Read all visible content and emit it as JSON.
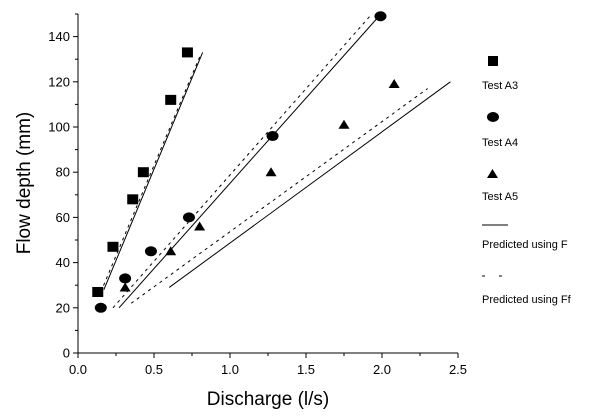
{
  "chart_data": {
    "type": "scatter",
    "xlabel": "Discharge (l/s)",
    "ylabel": "Flow depth (mm)",
    "xlim": [
      0,
      2.5
    ],
    "ylim": [
      0,
      150
    ],
    "x_ticks": [
      0.0,
      0.5,
      1.0,
      1.5,
      2.0,
      2.5
    ],
    "x_tick_labels": [
      "0.0",
      "0.5",
      "1.0",
      "1.5",
      "2.0",
      "2.5"
    ],
    "y_ticks": [
      0,
      20,
      40,
      60,
      80,
      100,
      120,
      140
    ],
    "y_tick_labels": [
      "0",
      "20",
      "40",
      "60",
      "80",
      "100",
      "120",
      "140"
    ],
    "grid": false,
    "legend_position": "right",
    "series": [
      {
        "name": "Test A3",
        "marker": "square",
        "points": [
          {
            "x": 0.13,
            "y": 27
          },
          {
            "x": 0.23,
            "y": 47
          },
          {
            "x": 0.36,
            "y": 68
          },
          {
            "x": 0.43,
            "y": 80
          },
          {
            "x": 0.61,
            "y": 112
          },
          {
            "x": 0.72,
            "y": 133
          }
        ]
      },
      {
        "name": "Test A4",
        "marker": "circle",
        "points": [
          {
            "x": 0.15,
            "y": 20
          },
          {
            "x": 0.31,
            "y": 33
          },
          {
            "x": 0.48,
            "y": 45
          },
          {
            "x": 0.73,
            "y": 60
          },
          {
            "x": 1.28,
            "y": 96
          },
          {
            "x": 1.99,
            "y": 149
          }
        ]
      },
      {
        "name": "Test A5",
        "marker": "triangle",
        "points": [
          {
            "x": 0.31,
            "y": 29
          },
          {
            "x": 0.61,
            "y": 45
          },
          {
            "x": 0.8,
            "y": 56
          },
          {
            "x": 1.27,
            "y": 80
          },
          {
            "x": 1.75,
            "y": 101
          },
          {
            "x": 2.08,
            "y": 119
          }
        ]
      }
    ],
    "lines": [
      {
        "name": "Predicted using F",
        "style": "solid",
        "group": "A3",
        "points": [
          {
            "x": 0.17,
            "y": 28
          },
          {
            "x": 0.82,
            "y": 133
          }
        ]
      },
      {
        "name": "Predicted using Ff",
        "style": "dashed",
        "group": "A3",
        "points": [
          {
            "x": 0.15,
            "y": 27
          },
          {
            "x": 0.8,
            "y": 131
          }
        ]
      },
      {
        "name": "Predicted using F",
        "style": "solid",
        "group": "A4",
        "points": [
          {
            "x": 0.27,
            "y": 20
          },
          {
            "x": 1.98,
            "y": 149
          }
        ]
      },
      {
        "name": "Predicted using Ff",
        "style": "dashed",
        "group": "A4",
        "points": [
          {
            "x": 0.23,
            "y": 20
          },
          {
            "x": 1.92,
            "y": 149
          }
        ]
      },
      {
        "name": "Predicted using F",
        "style": "solid",
        "group": "A5",
        "points": [
          {
            "x": 0.6,
            "y": 29
          },
          {
            "x": 2.45,
            "y": 120
          }
        ]
      },
      {
        "name": "Predicted using Ff",
        "style": "dashed",
        "group": "A5",
        "points": [
          {
            "x": 0.35,
            "y": 22
          },
          {
            "x": 2.3,
            "y": 117
          }
        ]
      }
    ],
    "legend": [
      {
        "label": "Test A3",
        "symbol": "square"
      },
      {
        "label": "Test A4",
        "symbol": "circle"
      },
      {
        "label": "Test A5",
        "symbol": "triangle"
      },
      {
        "label": "Predicted using F",
        "symbol": "solid-line"
      },
      {
        "label": "Predicted using Ff",
        "symbol": "dashed-line"
      }
    ]
  }
}
